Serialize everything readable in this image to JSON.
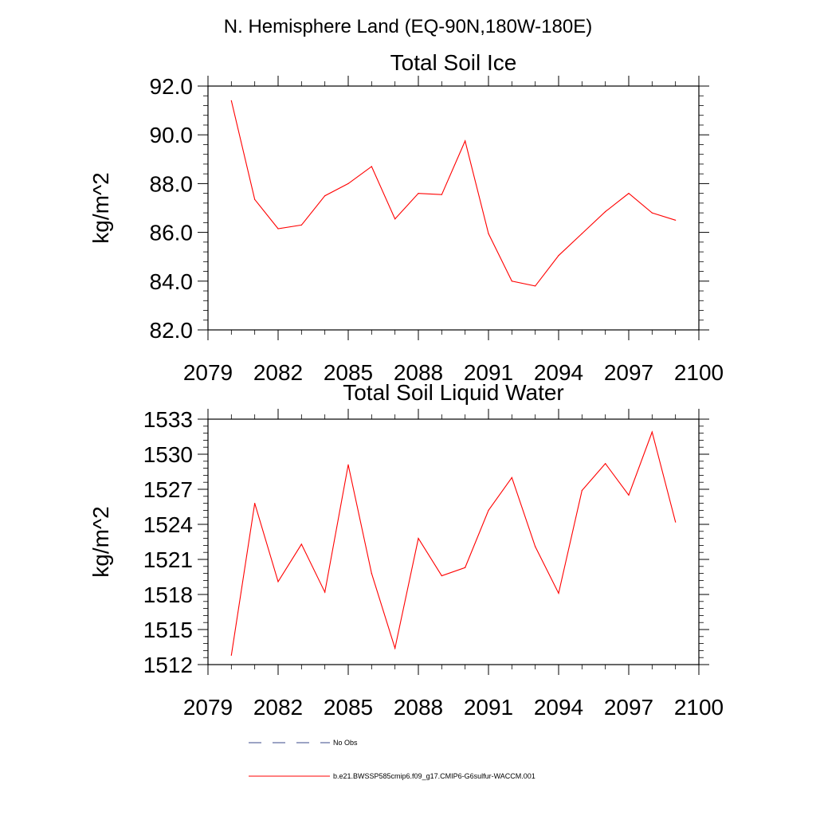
{
  "figure": {
    "suptitle": "N. Hemisphere Land (EQ-90N,180W-180E)"
  },
  "chart_data": [
    {
      "type": "line",
      "title": "Total Soil Ice",
      "xlabel": "",
      "ylabel": "kg/m^2",
      "xlim": [
        2079,
        2100
      ],
      "ylim": [
        82,
        92
      ],
      "xticks": [
        2079,
        2082,
        2085,
        2088,
        2091,
        2094,
        2097,
        2100
      ],
      "xtick_labels": [
        "2079",
        "2082",
        "2085",
        "2088",
        "2091",
        "2094",
        "2097",
        "2100"
      ],
      "yticks": [
        82,
        84,
        86,
        88,
        90,
        92
      ],
      "ytick_labels": [
        "82.0",
        "84.0",
        "86.0",
        "88.0",
        "90.0",
        "92.0"
      ],
      "grid": false,
      "series": [
        {
          "name": "b.e21.BWSSP585cmip6.f09_g17.CMIP6-G6sulfur-WACCM.001",
          "color": "#ff0000",
          "x": [
            2080,
            2081,
            2082,
            2083,
            2084,
            2085,
            2086,
            2087,
            2088,
            2089,
            2090,
            2091,
            2092,
            2093,
            2094,
            2095,
            2096,
            2097,
            2098,
            2099
          ],
          "values": [
            91.4,
            87.35,
            86.15,
            86.3,
            87.5,
            88.0,
            88.7,
            86.55,
            87.6,
            87.55,
            89.75,
            85.95,
            84.0,
            83.8,
            85.05,
            85.95,
            86.85,
            87.6,
            86.8,
            86.5
          ]
        }
      ]
    },
    {
      "type": "line",
      "title": "Total Soil Liquid Water",
      "xlabel": "",
      "ylabel": "kg/m^2",
      "xlim": [
        2079,
        2100
      ],
      "ylim": [
        1512,
        1533
      ],
      "xticks": [
        2079,
        2082,
        2085,
        2088,
        2091,
        2094,
        2097,
        2100
      ],
      "xtick_labels": [
        "2079",
        "2082",
        "2085",
        "2088",
        "2091",
        "2094",
        "2097",
        "2100"
      ],
      "yticks": [
        1512,
        1515,
        1518,
        1521,
        1524,
        1527,
        1530,
        1533
      ],
      "ytick_labels": [
        "1512",
        "1515",
        "1518",
        "1521",
        "1524",
        "1527",
        "1530",
        "1533"
      ],
      "grid": false,
      "series": [
        {
          "name": "b.e21.BWSSP585cmip6.f09_g17.CMIP6-G6sulfur-WACCM.001",
          "color": "#ff0000",
          "x": [
            2080,
            2081,
            2082,
            2083,
            2084,
            2085,
            2086,
            2087,
            2088,
            2089,
            2090,
            2091,
            2092,
            2093,
            2094,
            2095,
            2096,
            2097,
            2098,
            2099
          ],
          "values": [
            1512.8,
            1525.8,
            1519.1,
            1522.3,
            1518.2,
            1529.1,
            1519.8,
            1513.4,
            1522.8,
            1519.6,
            1520.3,
            1525.2,
            1528.0,
            1522.1,
            1518.1,
            1526.9,
            1529.2,
            1526.5,
            1531.9,
            1524.2
          ]
        }
      ]
    }
  ],
  "legend": {
    "placement": "bottom",
    "entries": [
      {
        "label": "No Obs",
        "style": "dashed",
        "color": "#3a4a8a"
      },
      {
        "label": "b.e21.BWSSP585cmip6.f09_g17.CMIP6-G6sulfur-WACCM.001",
        "style": "solid",
        "color": "#ff0000"
      }
    ]
  }
}
